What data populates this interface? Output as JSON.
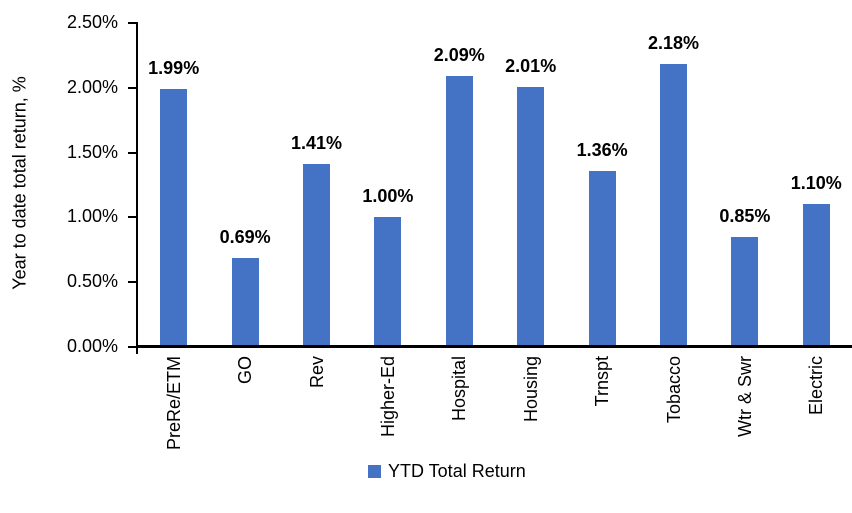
{
  "chart_data": {
    "type": "bar",
    "title": "",
    "categories": [
      "PreRe/ETM",
      "GO",
      "Rev",
      "Higher-Ed",
      "Hospital",
      "Housing",
      "Trnspt",
      "Tobacco",
      "Wtr & Swr",
      "Electric"
    ],
    "values": [
      1.99,
      0.69,
      1.41,
      1.0,
      2.09,
      2.01,
      1.36,
      2.18,
      0.85,
      1.1
    ],
    "value_labels": [
      "1.99%",
      "0.69%",
      "1.41%",
      "1.00%",
      "2.09%",
      "2.01%",
      "1.36%",
      "2.18%",
      "0.85%",
      "1.10%"
    ],
    "ylabel": "Year to date total return, %",
    "xlabel": "",
    "yticks": [
      "0.00%",
      "0.50%",
      "1.00%",
      "1.50%",
      "2.00%",
      "2.50%"
    ],
    "ytick_values": [
      0,
      0.5,
      1.0,
      1.5,
      2.0,
      2.5
    ],
    "ylim": [
      0,
      2.5
    ],
    "grid": false,
    "bar_color": "#4472C4",
    "axis_color": "#000000",
    "text_color": "#000000",
    "legend": {
      "position": "bottom",
      "items": [
        {
          "label": "YTD Total Return",
          "color": "#4472C4"
        }
      ]
    }
  }
}
